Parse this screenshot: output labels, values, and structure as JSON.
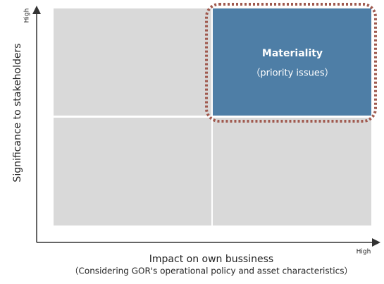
{
  "axes": {
    "y_label": "Significance to stakeholders",
    "y_high": "High",
    "x_label": "Impact on own bussiness",
    "x_sublabel": "（Considering GOR's operational policy and asset characteristics）",
    "x_high": "High"
  },
  "quadrants": {
    "materiality": {
      "title": "Materiality",
      "subtitle": "（priority issues）"
    }
  }
}
